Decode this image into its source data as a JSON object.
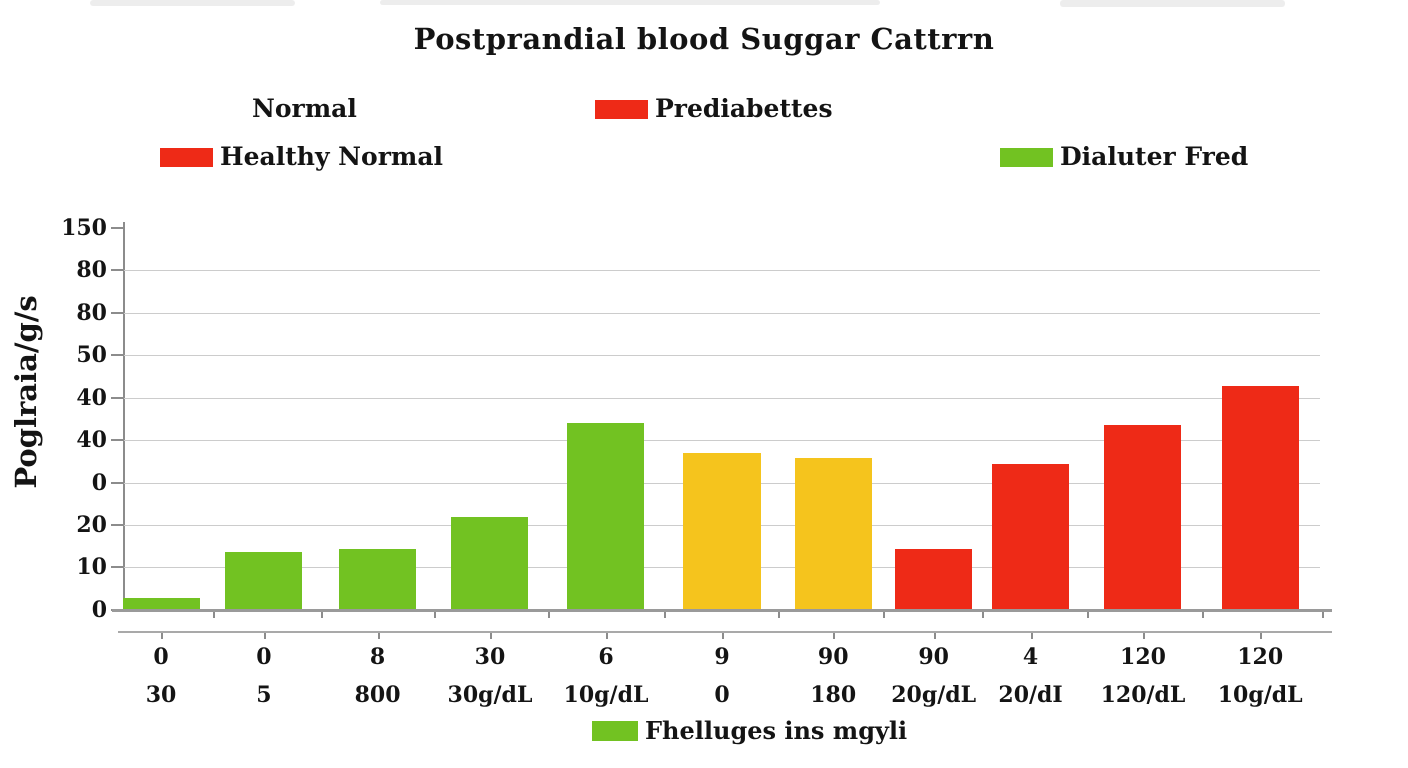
{
  "title": "Postprandial blood Suggar Cattrrn",
  "colors": {
    "green": "#72c222",
    "yellow": "#f5c41d",
    "red": "#ee2a17",
    "gridline": "#cccccc",
    "axis": "#8c8c8c",
    "text": "#141414"
  },
  "legend": {
    "row1": [
      {
        "label": "Normal",
        "swatch": null
      },
      {
        "label": "Prediabettes",
        "swatch": "red"
      }
    ],
    "row2": [
      {
        "label": "Healthy Normal",
        "swatch": "red"
      },
      {
        "label": "Dialuter Fred",
        "swatch": "green"
      }
    ],
    "bottom": {
      "label": "Fhelluges ins mgyli",
      "swatch": "green"
    }
  },
  "y_axis": {
    "title": "Poglraia/g/s",
    "ticks_top_to_bottom": [
      "150",
      "80",
      "80",
      "50",
      "40",
      "40",
      "0",
      "20",
      "10",
      "0"
    ]
  },
  "chart_data": {
    "type": "bar",
    "title": "Postprandial blood Suggar Cattrrn",
    "ylabel": "Poglraia/g/s",
    "y_tick_labels_top_to_bottom": [
      "150",
      "80",
      "80",
      "50",
      "40",
      "40",
      "0",
      "20",
      "10",
      "0"
    ],
    "grid": true,
    "legend_position": "top-and-bottom",
    "value_unit_note": "bar values measured in gridline intervals above baseline; printed axis labels are non-monotonic",
    "bars": [
      {
        "top_label": "0",
        "bottom_label": "30",
        "color": "green",
        "value_units": 0.3,
        "height_pct": 3.1,
        "center_pct": 3.1
      },
      {
        "top_label": "0",
        "bottom_label": "5",
        "color": "green",
        "value_units": 1.4,
        "height_pct": 14.9,
        "center_pct": 11.7
      },
      {
        "top_label": "8",
        "bottom_label": "800",
        "color": "green",
        "value_units": 1.4,
        "height_pct": 15.7,
        "center_pct": 21.2
      },
      {
        "top_label": "30",
        "bottom_label": "30g/dL",
        "color": "green",
        "value_units": 2.2,
        "height_pct": 24.0,
        "center_pct": 30.6
      },
      {
        "top_label": "6",
        "bottom_label": "10g/dL",
        "color": "green",
        "value_units": 4.4,
        "height_pct": 48.2,
        "center_pct": 40.3
      },
      {
        "top_label": "9",
        "bottom_label": "0",
        "color": "yellow",
        "value_units": 3.7,
        "height_pct": 40.5,
        "center_pct": 50.0
      },
      {
        "top_label": "90",
        "bottom_label": "180",
        "color": "yellow",
        "value_units": 3.6,
        "height_pct": 39.2,
        "center_pct": 59.3
      },
      {
        "top_label": "90",
        "bottom_label": "20g/dL",
        "color": "red",
        "value_units": 1.4,
        "height_pct": 15.7,
        "center_pct": 67.7
      },
      {
        "top_label": "4",
        "bottom_label": "20/dI",
        "color": "red",
        "value_units": 3.4,
        "height_pct": 37.6,
        "center_pct": 75.8
      },
      {
        "top_label": "120",
        "bottom_label": "120/dL",
        "color": "red",
        "value_units": 4.4,
        "height_pct": 47.7,
        "center_pct": 85.2
      },
      {
        "top_label": "120",
        "bottom_label": "10g/dL",
        "color": "red",
        "value_units": 5.3,
        "height_pct": 57.7,
        "center_pct": 95.0
      }
    ],
    "bar_width_pct": 6.44
  }
}
